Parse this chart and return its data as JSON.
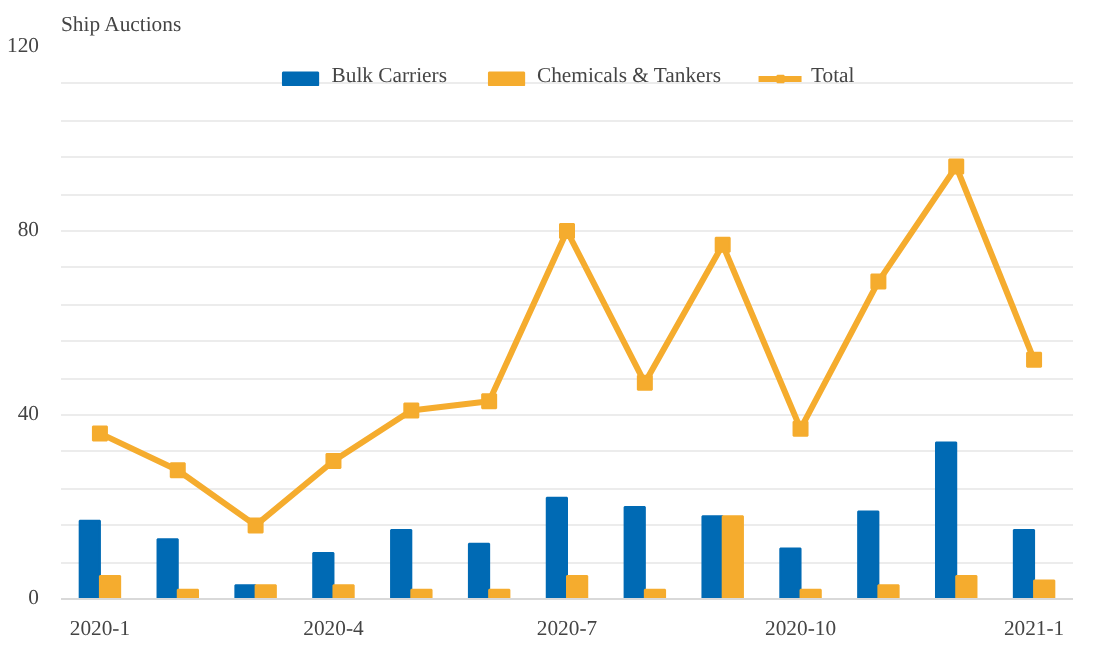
{
  "chart_data": {
    "type": "bar",
    "ylabel": "Ship  Auctions",
    "categories": [
      "2020-1",
      null,
      null,
      "2020-4",
      null,
      null,
      "2020-7",
      null,
      null,
      "2020-10",
      null,
      null,
      "2021-1"
    ],
    "series": [
      {
        "name": "Bulk Carriers",
        "color": "#006ab4",
        "values": [
          17,
          13,
          3,
          10,
          15,
          12,
          22,
          20,
          18,
          11,
          19,
          34,
          15
        ]
      },
      {
        "name": "Chemicals & Tankers",
        "color": "#f5ac2e",
        "values": [
          5,
          2,
          3,
          3,
          2,
          2,
          5,
          2,
          18,
          2,
          3,
          5,
          4
        ]
      },
      {
        "name": "Total",
        "type": "line",
        "color": "#f5ac2e",
        "marker": "square",
        "values": [
          36,
          28,
          16,
          30,
          41,
          43,
          80,
          47,
          77,
          37,
          69,
          94,
          52
        ]
      }
    ],
    "ylim": [
      0,
      120
    ],
    "yticks": [
      0,
      {
        "value": 8,
        "label": null
      },
      {
        "value": 16,
        "label": null
      },
      {
        "value": 24,
        "label": null
      },
      {
        "value": 32,
        "label": null
      },
      40,
      {
        "value": 48,
        "label": null
      },
      {
        "value": 56,
        "label": null
      },
      {
        "value": 64,
        "label": null
      },
      {
        "value": 72,
        "label": null
      },
      80,
      {
        "value": 88,
        "label": null
      },
      {
        "value": 96,
        "label": null
      },
      {
        "value": 104,
        "label": null
      },
      {
        "value": 112,
        "label": null
      },
      120
    ],
    "grid": "y",
    "legend": "top"
  }
}
